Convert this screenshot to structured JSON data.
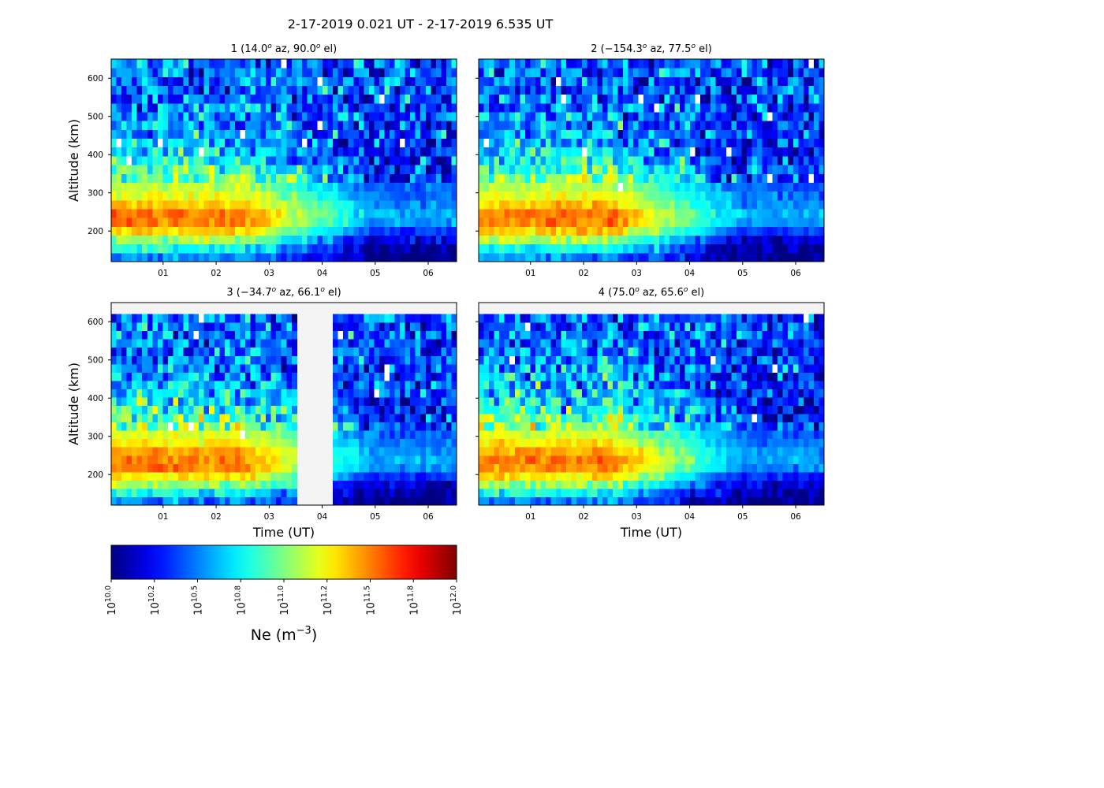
{
  "chart_data": {
    "type": "heatmap",
    "suptitle": "2-17-2019 0.021 UT - 2-17-2019 6.535 UT",
    "x_range": [
      0.021,
      6.535
    ],
    "x_ticks": [
      1,
      2,
      3,
      4,
      5,
      6
    ],
    "x_tick_labels": [
      "01",
      "02",
      "03",
      "04",
      "05",
      "06"
    ],
    "y_ticks": [
      200,
      300,
      400,
      500,
      600
    ],
    "y_tick_labels": [
      "200",
      "300",
      "400",
      "500",
      "600"
    ],
    "colorscale": "jet",
    "clim_log10": [
      10.0,
      12.0
    ],
    "missing_color": "#f4f4f4",
    "panels": [
      {
        "beam": "1",
        "azimuth": "14.0",
        "elevation": "90.0",
        "ylabel": "Altitude (km)",
        "xlabel": "",
        "ylim": [
          120,
          650
        ],
        "alt_range": [
          120,
          650
        ],
        "gaps": []
      },
      {
        "beam": "2",
        "azimuth": "−154.3",
        "elevation": "77.5",
        "ylabel": "",
        "xlabel": "",
        "ylim": [
          120,
          650
        ],
        "alt_range": [
          120,
          650
        ],
        "gaps": []
      },
      {
        "beam": "3",
        "azimuth": "−34.7",
        "elevation": "66.1",
        "ylabel": "Altitude (km)",
        "xlabel": "Time (UT)",
        "ylim": [
          120,
          650
        ],
        "alt_range": [
          120,
          620
        ],
        "gaps": [
          [
            3.55,
            4.22
          ]
        ]
      },
      {
        "beam": "4",
        "azimuth": "75.0",
        "elevation": "65.6",
        "ylabel": "",
        "xlabel": "Time (UT)",
        "ylim": [
          120,
          650
        ],
        "alt_range": [
          120,
          620
        ],
        "gaps": []
      }
    ],
    "profile_log10": {
      "altitude_km": [
        130,
        160,
        190,
        220,
        250,
        280,
        320,
        370,
        420,
        500,
        600
      ],
      "early_0_2UT": [
        10.5,
        10.85,
        11.25,
        11.5,
        11.5,
        11.3,
        11.1,
        10.85,
        10.65,
        10.5,
        10.45
      ],
      "late_5_6UT": [
        10.0,
        10.05,
        10.25,
        10.55,
        10.6,
        10.5,
        10.4,
        10.3,
        10.3,
        10.35,
        10.4
      ]
    },
    "colorbar": {
      "label": "Ne (m",
      "label_exponent": "−3",
      "label_close": ")",
      "tick_values": [
        10.0,
        10.25,
        10.5,
        10.75,
        11.0,
        11.25,
        11.5,
        11.75,
        12.0
      ],
      "tick_labels": [
        "10.0",
        "10.2",
        "10.5",
        "10.8",
        "11.0",
        "11.2",
        "11.5",
        "11.8",
        "12.0"
      ],
      "tick_base": "10"
    }
  }
}
